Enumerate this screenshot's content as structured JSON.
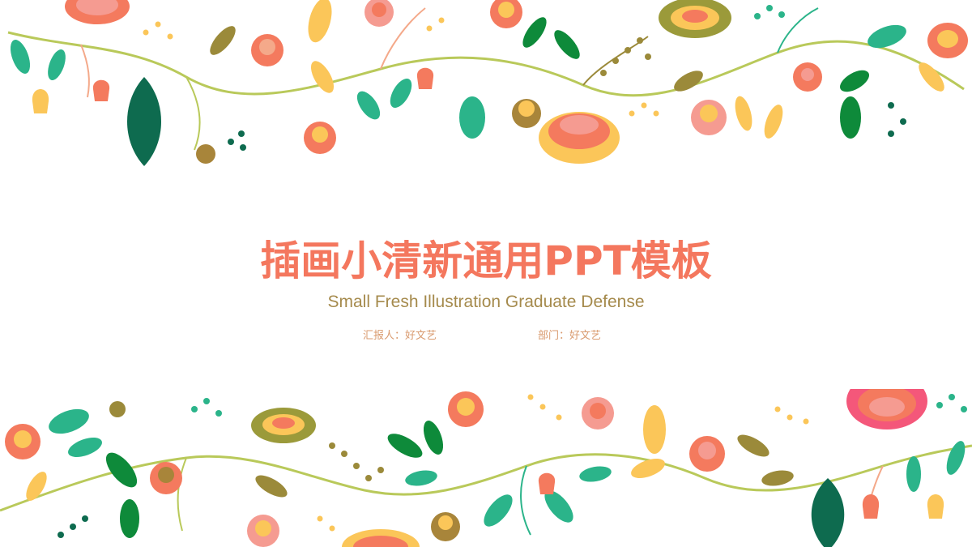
{
  "slide": {
    "title": "插画小清新通用PPT模板",
    "subtitle": "Small Fresh Illustration Graduate Defense",
    "reporter": "汇报人：好文艺",
    "department": "部门：好文艺"
  },
  "colors": {
    "title": "#f4775e",
    "subtitle": "#a58a4c",
    "meta": "#d99a6e",
    "vine": "#b9c95a",
    "leaf_green": "#2bb48a",
    "leaf_dark": "#0e6b4f",
    "leaf_olive": "#9b8a3a",
    "flower_coral": "#f47a5e",
    "flower_yellow": "#fbc659",
    "flower_pink": "#f59b91"
  }
}
